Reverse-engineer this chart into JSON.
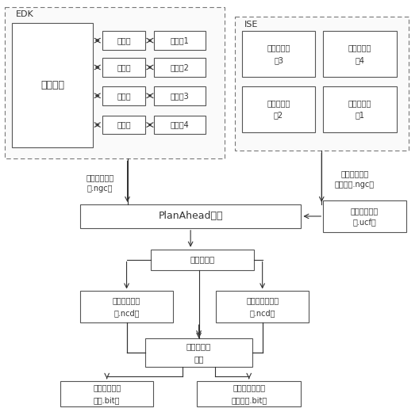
{
  "bg_color": "#ffffff",
  "line_color": "#333333",
  "text_color": "#333333",
  "edk_label": "EDK",
  "ise_label": "ISE",
  "static_region_label": "静态区域",
  "bus_macro_label": "总线宏",
  "black_box_labels": [
    "黑盒共1",
    "黑盒共2",
    "黑盒共3",
    "黑盒共4"
  ],
  "reconfig_mod_line1": "可重构功能",
  "reconfig_mod_line2": [
    "樯3",
    "樯4",
    "樯2",
    "樯1"
  ],
  "top_netlist_line1": "顶层网表文件",
  "top_netlist_line2": "（.ngc）",
  "reconfig_netlist_line1": "可重构模块网",
  "reconfig_netlist_line2": "表文件（.ngc）",
  "planahead_label": "PlanAhead软件",
  "ucf_line1": "用户约束文件",
  "ucf_line2": "（.ucf）",
  "translate_label": "翻译、映射",
  "static_mod_line1": "静态区域模块",
  "static_mod_line2": "（.ncd）",
  "reconfig_mod2_line1": "可重构区域模块",
  "reconfig_mod2_line2": "（.ncd）",
  "partial_line1": "部分可重构",
  "partial_line2": "工具",
  "global_bit_line1": "全局比特流文",
  "global_bit_line2": "件（.bit）",
  "reconfig_bit_line1": "可重构模块比特",
  "reconfig_bit_line2": "流文件（.bit）"
}
